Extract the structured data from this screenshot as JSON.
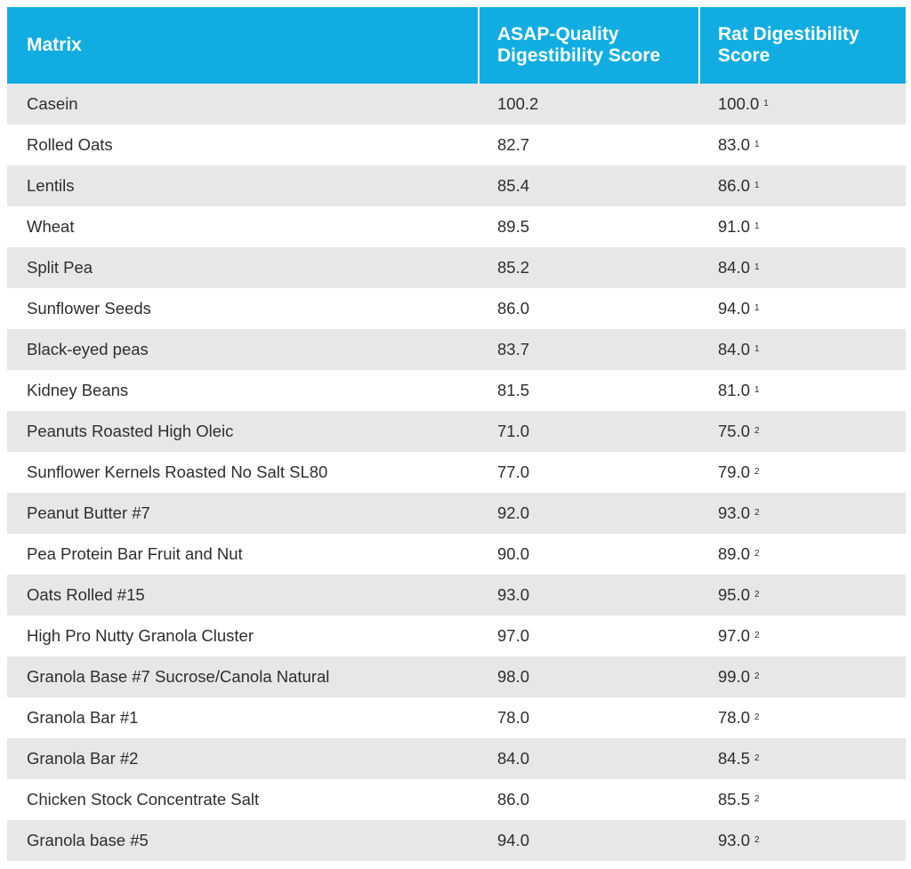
{
  "table": {
    "headers": {
      "matrix": "Matrix",
      "asap": "ASAP-Quality\nDigestibility Score",
      "rat": "Rat Digestibility\nScore"
    },
    "rows": [
      {
        "matrix": "Casein",
        "asap": "100.2",
        "rat": "100.0",
        "note": "1"
      },
      {
        "matrix": "Rolled Oats",
        "asap": "82.7",
        "rat": "83.0",
        "note": "1"
      },
      {
        "matrix": "Lentils",
        "asap": "85.4",
        "rat": "86.0",
        "note": "1"
      },
      {
        "matrix": "Wheat",
        "asap": "89.5",
        "rat": "91.0",
        "note": "1"
      },
      {
        "matrix": "Split Pea",
        "asap": "85.2",
        "rat": "84.0",
        "note": "1"
      },
      {
        "matrix": "Sunflower Seeds",
        "asap": "86.0",
        "rat": "94.0",
        "note": "1"
      },
      {
        "matrix": "Black-eyed peas",
        "asap": "83.7",
        "rat": "84.0",
        "note": "1"
      },
      {
        "matrix": "Kidney Beans",
        "asap": "81.5",
        "rat": "81.0",
        "note": "1"
      },
      {
        "matrix": "Peanuts Roasted High Oleic",
        "asap": "71.0",
        "rat": "75.0",
        "note": "2"
      },
      {
        "matrix": "Sunflower Kernels Roasted No Salt SL80",
        "asap": "77.0",
        "rat": "79.0",
        "note": "2"
      },
      {
        "matrix": "Peanut Butter #7",
        "asap": "92.0",
        "rat": "93.0",
        "note": "2"
      },
      {
        "matrix": "Pea Protein Bar Fruit and Nut",
        "asap": "90.0",
        "rat": "89.0",
        "note": "2"
      },
      {
        "matrix": "Oats Rolled #15",
        "asap": "93.0",
        "rat": "95.0",
        "note": "2"
      },
      {
        "matrix": "High Pro Nutty Granola Cluster",
        "asap": "97.0",
        "rat": "97.0",
        "note": "2"
      },
      {
        "matrix": "Granola Base #7 Sucrose/Canola Natural",
        "asap": "98.0",
        "rat": "99.0",
        "note": "2"
      },
      {
        "matrix": "Granola Bar #1",
        "asap": "78.0",
        "rat": "78.0",
        "note": "2"
      },
      {
        "matrix": "Granola Bar #2",
        "asap": "84.0",
        "rat": "84.5",
        "note": "2"
      },
      {
        "matrix": "Chicken Stock Concentrate Salt",
        "asap": "86.0",
        "rat": "85.5",
        "note": "2"
      },
      {
        "matrix": "Granola base #5",
        "asap": "94.0",
        "rat": "93.0",
        "note": "2"
      }
    ]
  },
  "colors": {
    "header_bg": "#11ade2",
    "stripe": "#e6e7e9"
  }
}
